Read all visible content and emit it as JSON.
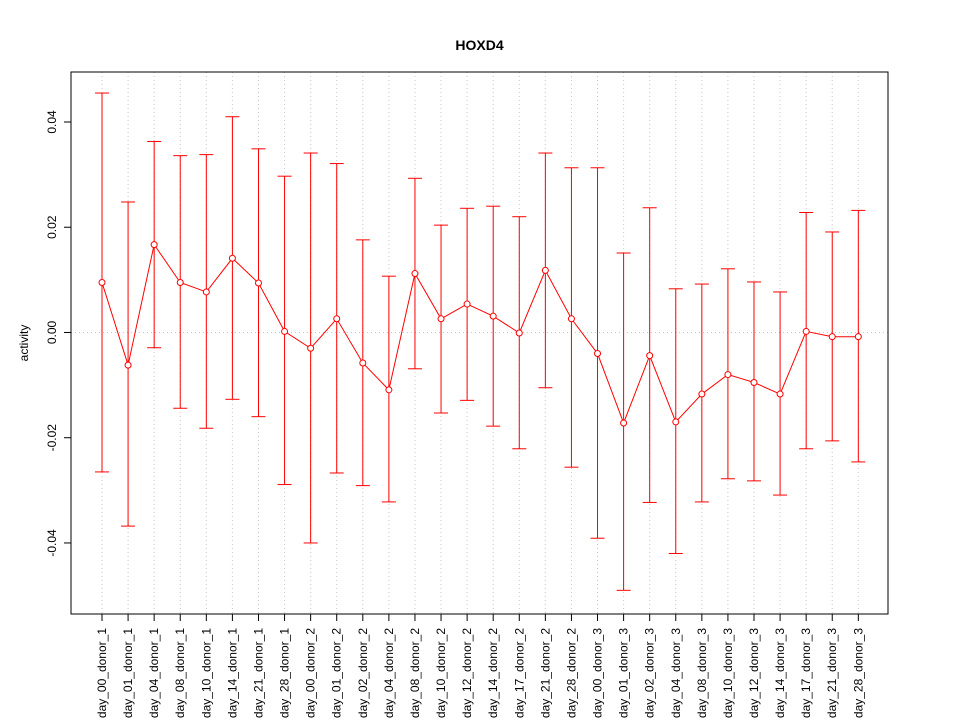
{
  "chart_data": {
    "type": "line",
    "title": "HOXD4",
    "xlabel": "",
    "ylabel": "activity",
    "ylim": [
      -0.0535,
      0.0495
    ],
    "yticks": [
      -0.04,
      -0.02,
      0.0,
      0.02,
      0.04
    ],
    "ytick_labels": [
      "-0.04",
      "-0.02",
      "0.00",
      "0.02",
      "0.04"
    ],
    "grid": "vertical dotted lines at each category",
    "reference_line": 0,
    "colors": {
      "series": "#ff0000",
      "grid": "#c8c8c8",
      "axis": "#000000"
    },
    "categories": [
      "day_00_donor_1",
      "day_01_donor_1",
      "day_04_donor_1",
      "day_08_donor_1",
      "day_10_donor_1",
      "day_14_donor_1",
      "day_21_donor_1",
      "day_28_donor_1",
      "day_00_donor_2",
      "day_01_donor_2",
      "day_02_donor_2",
      "day_04_donor_2",
      "day_08_donor_2",
      "day_10_donor_2",
      "day_12_donor_2",
      "day_14_donor_2",
      "day_17_donor_2",
      "day_21_donor_2",
      "day_28_donor_2",
      "day_00_donor_3",
      "day_01_donor_3",
      "day_02_donor_3",
      "day_04_donor_3",
      "day_08_donor_3",
      "day_10_donor_3",
      "day_12_donor_3",
      "day_14_donor_3",
      "day_17_donor_3",
      "day_21_donor_3",
      "day_28_donor_3"
    ],
    "series": [
      {
        "values": [
          0.0095,
          -0.0062,
          0.0167,
          0.0095,
          0.0077,
          0.0141,
          0.0094,
          0.0002,
          -0.003,
          0.0026,
          -0.0058,
          -0.0109,
          0.0112,
          0.0026,
          0.0054,
          0.0031,
          -0.0001,
          0.0118,
          0.0026,
          -0.004,
          -0.0172,
          -0.0044,
          -0.017,
          -0.0117,
          -0.008,
          -0.0095,
          -0.0117,
          0.0002,
          -0.0008,
          -0.0008
        ],
        "upper": [
          0.0455,
          0.0248,
          0.0363,
          0.0336,
          0.0338,
          0.041,
          0.0349,
          0.0297,
          0.0341,
          0.0321,
          0.0176,
          0.0107,
          0.0293,
          0.0204,
          0.0236,
          0.024,
          0.022,
          0.0341,
          0.0313,
          0.0313,
          0.0151,
          0.0237,
          0.0083,
          0.0092,
          0.0121,
          0.0096,
          0.0077,
          0.0228,
          0.0191,
          0.0232
        ],
        "lower": [
          -0.0265,
          -0.0368,
          -0.0029,
          -0.0144,
          -0.0182,
          -0.0127,
          -0.016,
          -0.0289,
          -0.04,
          -0.0267,
          -0.0291,
          -0.0322,
          -0.0069,
          -0.0153,
          -0.0129,
          -0.0178,
          -0.0221,
          -0.0105,
          -0.0256,
          -0.0391,
          -0.049,
          -0.0323,
          -0.042,
          -0.0322,
          -0.0278,
          -0.0282,
          -0.0309,
          -0.0221,
          -0.0206,
          -0.0246
        ]
      }
    ]
  }
}
